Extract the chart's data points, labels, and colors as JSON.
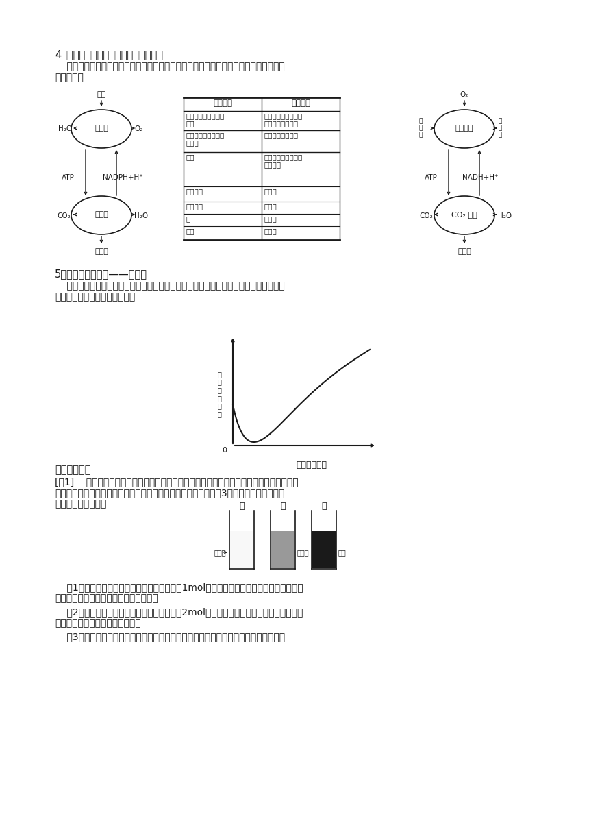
{
  "bg_color": "#ffffff",
  "section4_title": "4．光能合成细菌和化能合成细菌的比较",
  "section4_body1": "    自然界中光能合成细菌和化能合成细菌在生物进化过程中有重要作用，两者间也存在较",
  "section4_body2": "大的区别。",
  "section5_title": "5．兼性厌氧型生物——酵母菌",
  "section5_body1": "    该菌既可在有氧情况下生存，也可在无氧状态下活动，此类生物的生命活动比较特殊，",
  "section5_body2": "也有较高的实用价值，如酿酒。",
  "typical_title": "【典型例题】",
  "example1_line1": "[例1]    酵母菌研磨、离心分离后，得到上清液：（含细胞质基质）和沉淀物（含细胞器），",
  "example1_line2": "把等量的上清液、沉淀物和未离心处理的匀浆分别放入甲、乙、丙3个试管中，如图所示，",
  "example1_line3": "分别进行以下实验：",
  "exp1_line1": "    （1）实验一：向三支试管中分别滴加等量（1mol）的葡萄糖溶液，甲、乙、丙中的终产",
  "exp1_line2": "物分别是：甲＿＿，乙＿＿，丙＿＿＿。",
  "exp2_line1": "    （2）实验二：向三支试管中分别滴加等量（2mol）的丙酮酸，甲、乙、丙中的终产物分",
  "exp2_line2": "别是：甲＿＿，乙＿＿，丙＿＿＿",
  "exp3_line1": "    （3）实验三：在隔绝空气的条件下，重复实验一，甲、乙、丙中的终产物分别是：甲"
}
